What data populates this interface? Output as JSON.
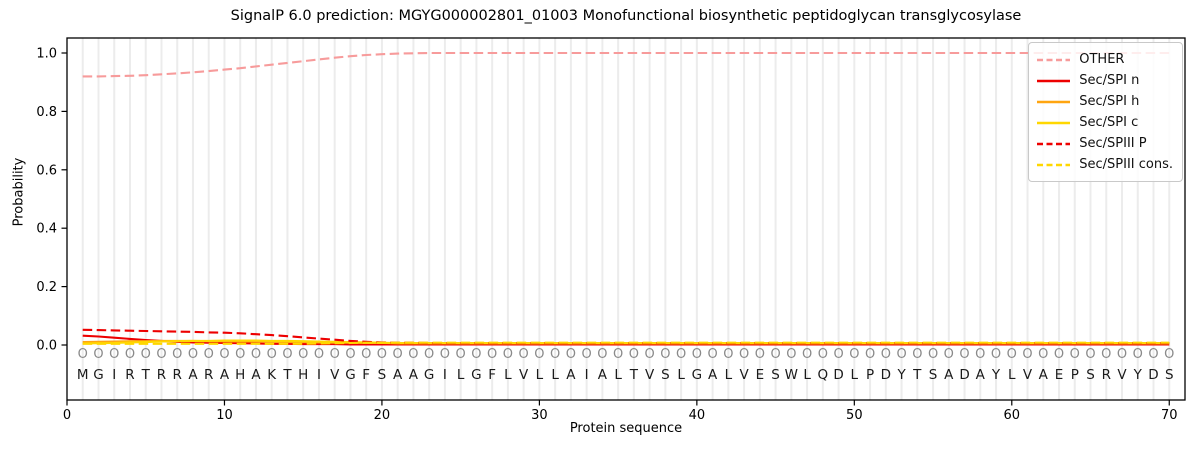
{
  "title": "SignalP 6.0 prediction: MGYG000002801_01003 Monofunctional biosynthetic peptidoglycan transglycosylase",
  "chart_data": {
    "type": "line",
    "title": "SignalP 6.0 prediction: MGYG000002801_01003 Monofunctional biosynthetic peptidoglycan transglycosylase",
    "xlabel": "Protein sequence",
    "ylabel": "Probability",
    "xlim": [
      0,
      71
    ],
    "ylim": [
      -0.19,
      1.05
    ],
    "x_ticks": [
      0,
      10,
      20,
      30,
      40,
      50,
      60,
      70
    ],
    "y_ticks": [
      0.0,
      0.2,
      0.4,
      0.6,
      0.8,
      1.0
    ],
    "grid": "vertical line at every residue position, no horizontal grid",
    "legend_position": "upper right",
    "x_start": 1,
    "sequence": "MGIRTRRARAHAKTHIVGFSAAGILGFLVLLAIALTVSLGALVESWLQDLPDYTSADAYLVAEPSRVYDS",
    "predicted_labels": "OOOOOOOOOOOOOOOOOOOOOOOOOOOOOOOOOOOOOOOOOOOOOOOOOOOOOOOOOOOOOOOOOOOOOO",
    "series": [
      {
        "name": "OTHER",
        "color": "#f79b9b",
        "dashed": true,
        "values": [
          0.92,
          0.92,
          0.921,
          0.922,
          0.924,
          0.927,
          0.93,
          0.934,
          0.938,
          0.943,
          0.948,
          0.954,
          0.96,
          0.966,
          0.972,
          0.978,
          0.984,
          0.989,
          0.993,
          0.996,
          0.998,
          0.999,
          1.0,
          1.0,
          1.0,
          1.0,
          1.0,
          1.0,
          1.0,
          1.0,
          1.0,
          1.0,
          1.0,
          1.0,
          1.0,
          1.0,
          1.0,
          1.0,
          1.0,
          1.0,
          1.0,
          1.0,
          1.0,
          1.0,
          1.0,
          1.0,
          1.0,
          1.0,
          1.0,
          1.0,
          1.0,
          1.0,
          1.0,
          1.0,
          1.0,
          1.0,
          1.0,
          1.0,
          1.0,
          1.0,
          1.0,
          1.0,
          1.0,
          1.0,
          1.0,
          1.0,
          1.0,
          1.0,
          1.0,
          1.0
        ]
      },
      {
        "name": "Sec/SPI n",
        "color": "#ed0000",
        "dashed": false,
        "values": [
          0.032,
          0.029,
          0.025,
          0.021,
          0.017,
          0.014,
          0.011,
          0.009,
          0.008,
          0.007,
          0.006,
          0.005,
          0.004,
          0.004,
          0.003,
          0.003,
          0.003,
          0.002,
          0.002,
          0.002,
          0.002,
          0.002,
          0.002,
          0.002,
          0.002,
          0.002,
          0.002,
          0.002,
          0.002,
          0.002,
          0.002,
          0.002,
          0.002,
          0.002,
          0.002,
          0.002,
          0.002,
          0.002,
          0.002,
          0.002,
          0.002,
          0.002,
          0.002,
          0.002,
          0.002,
          0.002,
          0.002,
          0.002,
          0.002,
          0.002,
          0.002,
          0.002,
          0.002,
          0.002,
          0.002,
          0.002,
          0.002,
          0.002,
          0.002,
          0.002,
          0.002,
          0.002,
          0.002,
          0.002,
          0.002,
          0.002,
          0.002,
          0.002,
          0.002,
          0.002
        ]
      },
      {
        "name": "Sec/SPI h",
        "color": "#ffa510",
        "dashed": false,
        "values": [
          0.01,
          0.011,
          0.012,
          0.013,
          0.013,
          0.014,
          0.014,
          0.014,
          0.013,
          0.013,
          0.012,
          0.012,
          0.011,
          0.01,
          0.01,
          0.009,
          0.008,
          0.008,
          0.007,
          0.007,
          0.006,
          0.006,
          0.006,
          0.006,
          0.006,
          0.006,
          0.006,
          0.006,
          0.006,
          0.006,
          0.006,
          0.006,
          0.006,
          0.006,
          0.006,
          0.006,
          0.006,
          0.006,
          0.006,
          0.006,
          0.006,
          0.006,
          0.006,
          0.006,
          0.006,
          0.006,
          0.006,
          0.006,
          0.006,
          0.006,
          0.006,
          0.006,
          0.006,
          0.006,
          0.006,
          0.006,
          0.006,
          0.006,
          0.006,
          0.006,
          0.006,
          0.006,
          0.006,
          0.006,
          0.006,
          0.006,
          0.006,
          0.006,
          0.006,
          0.006
        ]
      },
      {
        "name": "Sec/SPI c",
        "color": "#ffd700",
        "dashed": false,
        "values": [
          0.005,
          0.006,
          0.007,
          0.009,
          0.01,
          0.012,
          0.013,
          0.014,
          0.014,
          0.015,
          0.015,
          0.015,
          0.014,
          0.014,
          0.013,
          0.012,
          0.011,
          0.01,
          0.009,
          0.008,
          0.006,
          0.006,
          0.006,
          0.006,
          0.006,
          0.006,
          0.006,
          0.006,
          0.006,
          0.006,
          0.006,
          0.006,
          0.006,
          0.006,
          0.006,
          0.006,
          0.006,
          0.006,
          0.006,
          0.006,
          0.006,
          0.006,
          0.006,
          0.006,
          0.006,
          0.006,
          0.006,
          0.006,
          0.006,
          0.006,
          0.006,
          0.006,
          0.006,
          0.006,
          0.006,
          0.006,
          0.006,
          0.006,
          0.006,
          0.006,
          0.006,
          0.006,
          0.006,
          0.006,
          0.006,
          0.006,
          0.006,
          0.006,
          0.006,
          0.006
        ]
      },
      {
        "name": "Sec/SPIII P",
        "color": "#ed0000",
        "dashed": true,
        "values": [
          0.052,
          0.051,
          0.05,
          0.049,
          0.048,
          0.047,
          0.046,
          0.045,
          0.043,
          0.042,
          0.04,
          0.037,
          0.034,
          0.03,
          0.026,
          0.022,
          0.018,
          0.014,
          0.011,
          0.009,
          0.008,
          0.008,
          0.007,
          0.007,
          0.007,
          0.007,
          0.007,
          0.007,
          0.007,
          0.007,
          0.007,
          0.007,
          0.007,
          0.007,
          0.007,
          0.007,
          0.007,
          0.007,
          0.007,
          0.007,
          0.007,
          0.007,
          0.007,
          0.007,
          0.007,
          0.007,
          0.007,
          0.007,
          0.007,
          0.007,
          0.007,
          0.007,
          0.007,
          0.007,
          0.007,
          0.007,
          0.007,
          0.007,
          0.007,
          0.007,
          0.007,
          0.007,
          0.007,
          0.007,
          0.007,
          0.007,
          0.007,
          0.007,
          0.007,
          0.007
        ]
      },
      {
        "name": "Sec/SPIII cons.",
        "color": "#ffd700",
        "dashed": true,
        "values": [
          0.004,
          0.004,
          0.004,
          0.004,
          0.004,
          0.004,
          0.004,
          0.004,
          0.004,
          0.004,
          0.004,
          0.004,
          0.004,
          0.004,
          0.004,
          0.005,
          0.006,
          0.007,
          0.008,
          0.008,
          0.008,
          0.008,
          0.008,
          0.008,
          0.008,
          0.008,
          0.008,
          0.008,
          0.008,
          0.008,
          0.008,
          0.008,
          0.008,
          0.008,
          0.008,
          0.008,
          0.008,
          0.008,
          0.008,
          0.008,
          0.008,
          0.008,
          0.008,
          0.008,
          0.008,
          0.008,
          0.008,
          0.008,
          0.008,
          0.008,
          0.008,
          0.008,
          0.008,
          0.008,
          0.008,
          0.008,
          0.008,
          0.008,
          0.008,
          0.008,
          0.008,
          0.008,
          0.008,
          0.008,
          0.008,
          0.008,
          0.008,
          0.008,
          0.008,
          0.008
        ]
      }
    ],
    "colors": {
      "axis": "#000000",
      "gridline": "#ececec",
      "sequence_letter": "#1a1a1a",
      "predicted_label_letter": "#8a8a8a",
      "legend_border": "#c9c9c9"
    }
  }
}
